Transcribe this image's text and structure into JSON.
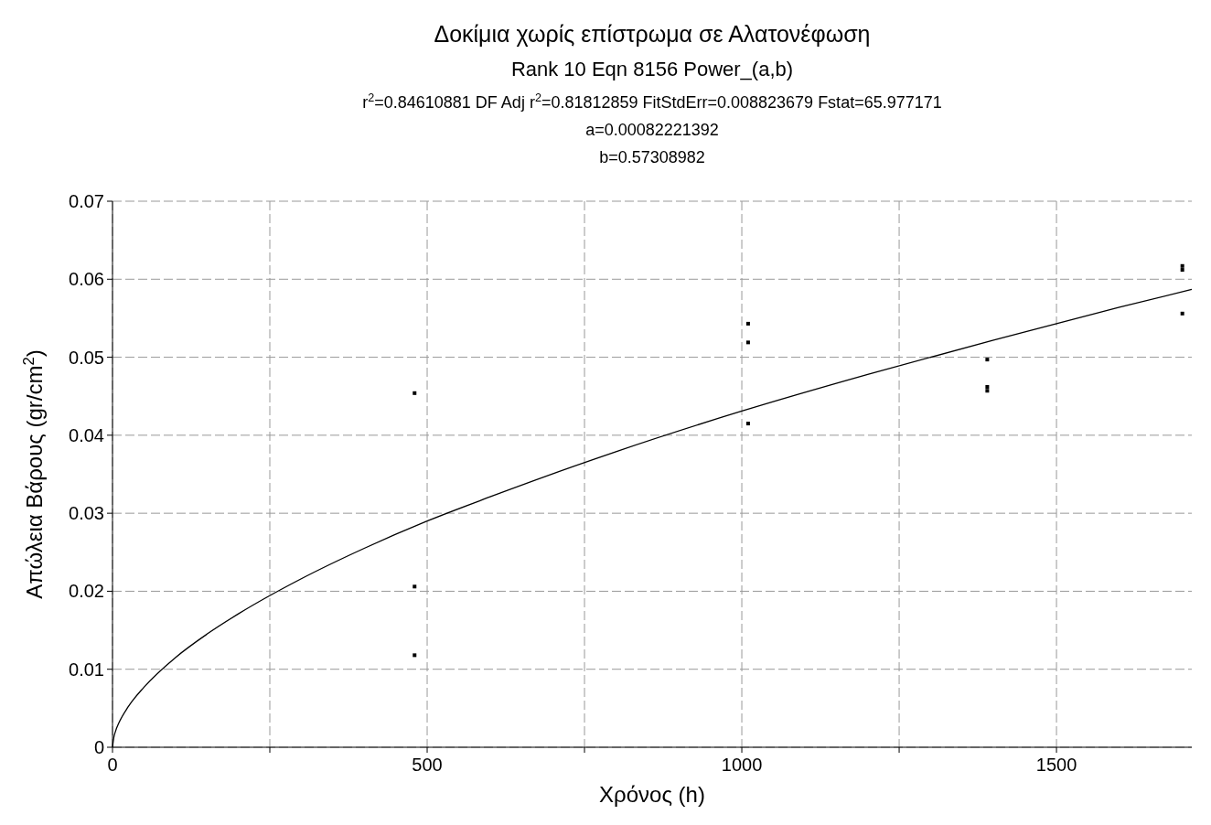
{
  "chart_data": {
    "type": "scatter",
    "title": "Δοκίμια χωρίς επίστρωμα σε Αλατονέφωση",
    "subtitle": "Rank 10  Eqn 8156  Power_(a,b)",
    "annotations": [
      "r$^{2}$=0.84610881  DF Adj r$^{2}$=0.81812859  FitStdErr=0.008823679  Fstat=65.977171",
      "a=0.00082221392",
      "b=0.57308982"
    ],
    "xlabel": "Χρόνος (h)",
    "ylabel": "Απώλεια Βάρους (gr/cm$^{2}$)",
    "xlim": [
      0,
      1715
    ],
    "ylim": [
      0,
      0.07
    ],
    "xticks": [
      0,
      {
        "value": 250,
        "label": null
      },
      500,
      {
        "value": 750,
        "label": null
      },
      1000,
      {
        "value": 1250,
        "label": null
      },
      1500
    ],
    "yticks": [
      0,
      0.01,
      0.02,
      0.03,
      0.04,
      0.05,
      0.06,
      0.07
    ],
    "grid": true,
    "marker": "square",
    "series": [
      {
        "color": "#000000",
        "x": [
          480,
          480,
          480,
          1010,
          1010,
          1010,
          1390,
          1390,
          1390,
          1700,
          1700,
          1700
        ],
        "values": [
          0.0454,
          0.0206,
          0.0118,
          0.0543,
          0.0519,
          0.0415,
          0.0497,
          0.0462,
          0.0457,
          0.0617,
          0.0612,
          0.0556
        ]
      },
      {
        "type": "line",
        "color": "#000000",
        "marker": "none",
        "line_style": "solid",
        "x": [
          0,
          2,
          5,
          10,
          25,
          50,
          100,
          150,
          200,
          300,
          400,
          500,
          600,
          800,
          1000,
          1200,
          1400,
          1600,
          1715
        ],
        "values": [
          0,
          0.0012,
          0.0021,
          0.0031,
          0.0052,
          0.0077,
          0.0115,
          0.0145,
          0.0171,
          0.0216,
          0.0255,
          0.029,
          0.0321,
          0.0379,
          0.0431,
          0.0478,
          0.0522,
          0.0564,
          0.0587
        ]
      }
    ]
  }
}
